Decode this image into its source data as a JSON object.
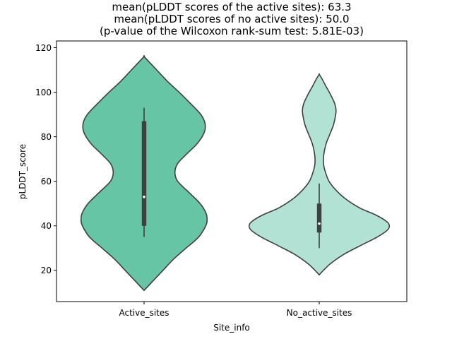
{
  "chart_data": {
    "type": "violin",
    "title_lines": [
      "mean(pLDDT scores of the active sites): 63.3",
      "mean(pLDDT scores of no active sites): 50.0",
      "(p-value of the Wilcoxon rank-sum test: 5.81E-03)"
    ],
    "xlabel": "Site_info",
    "ylabel": "pLDDT_score",
    "ylim": [
      6,
      123
    ],
    "yticks": [
      20,
      40,
      60,
      80,
      100,
      120
    ],
    "ytick_labels": [
      "20",
      "40",
      "60",
      "80",
      "100",
      "120"
    ],
    "categories": [
      "Active_sites",
      "No_active_sites"
    ],
    "series": [
      {
        "category": "Active_sites",
        "color": "#66c5a5",
        "min": 11,
        "max": 116,
        "whisker_low": 35,
        "q1": 40,
        "median": 53,
        "q3": 87,
        "whisker_high": 93,
        "density": [
          [
            11,
            0.0
          ],
          [
            13,
            0.06
          ],
          [
            16,
            0.15
          ],
          [
            20,
            0.27
          ],
          [
            25,
            0.42
          ],
          [
            30,
            0.6
          ],
          [
            35,
            0.78
          ],
          [
            40,
            0.88
          ],
          [
            43,
            0.9
          ],
          [
            46,
            0.88
          ],
          [
            50,
            0.8
          ],
          [
            55,
            0.64
          ],
          [
            60,
            0.48
          ],
          [
            64,
            0.44
          ],
          [
            68,
            0.48
          ],
          [
            72,
            0.6
          ],
          [
            77,
            0.76
          ],
          [
            82,
            0.86
          ],
          [
            86,
            0.87
          ],
          [
            90,
            0.81
          ],
          [
            95,
            0.66
          ],
          [
            100,
            0.5
          ],
          [
            105,
            0.33
          ],
          [
            110,
            0.18
          ],
          [
            113,
            0.09
          ],
          [
            116,
            0.0
          ]
        ]
      },
      {
        "category": "No_active_sites",
        "color": "#b2e2d3",
        "min": 18,
        "max": 108,
        "whisker_low": 30,
        "q1": 37,
        "median": 41,
        "q3": 50,
        "whisker_high": 59,
        "density": [
          [
            18,
            0.0
          ],
          [
            20,
            0.06
          ],
          [
            23,
            0.16
          ],
          [
            27,
            0.34
          ],
          [
            31,
            0.58
          ],
          [
            35,
            0.83
          ],
          [
            38,
            0.97
          ],
          [
            40,
            1.0
          ],
          [
            42,
            0.96
          ],
          [
            45,
            0.8
          ],
          [
            48,
            0.58
          ],
          [
            52,
            0.38
          ],
          [
            56,
            0.24
          ],
          [
            60,
            0.14
          ],
          [
            64,
            0.09
          ],
          [
            67,
            0.065
          ],
          [
            70,
            0.06
          ],
          [
            73,
            0.07
          ],
          [
            77,
            0.1
          ],
          [
            81,
            0.15
          ],
          [
            85,
            0.2
          ],
          [
            89,
            0.23
          ],
          [
            92,
            0.24
          ],
          [
            95,
            0.22
          ],
          [
            99,
            0.16
          ],
          [
            103,
            0.09
          ],
          [
            106,
            0.04
          ],
          [
            108,
            0.0
          ]
        ]
      }
    ]
  }
}
